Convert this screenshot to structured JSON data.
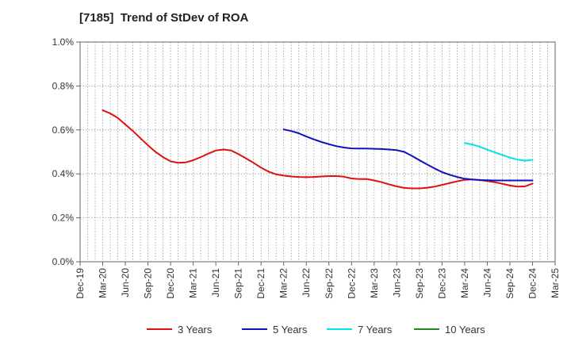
{
  "chart_data": {
    "type": "line",
    "title": "[7185]  Trend of StDev of ROA",
    "xlabel": "",
    "ylabel": "",
    "ylim": [
      0,
      1.0
    ],
    "y_ticks": [
      "0.0%",
      "0.2%",
      "0.4%",
      "0.6%",
      "0.8%",
      "1.0%"
    ],
    "y_tick_values": [
      0,
      0.2,
      0.4,
      0.6,
      0.8,
      1.0
    ],
    "x_ticks": [
      "Dec-19",
      "Mar-20",
      "Jun-20",
      "Sep-20",
      "Dec-20",
      "Mar-21",
      "Jun-21",
      "Sep-21",
      "Dec-21",
      "Mar-22",
      "Jun-22",
      "Sep-22",
      "Dec-22",
      "Mar-23",
      "Jun-23",
      "Sep-23",
      "Dec-23",
      "Mar-24",
      "Jun-24",
      "Sep-24",
      "Dec-24",
      "Mar-25"
    ],
    "grid": true,
    "legend_position": "bottom",
    "series": [
      {
        "name": "3 Years",
        "color": "#dd1111",
        "x": [
          "Mar-20",
          "Apr-20",
          "May-20",
          "Jun-20",
          "Jul-20",
          "Aug-20",
          "Sep-20",
          "Oct-20",
          "Nov-20",
          "Dec-20",
          "Jan-21",
          "Feb-21",
          "Mar-21",
          "Apr-21",
          "May-21",
          "Jun-21",
          "Jul-21",
          "Aug-21",
          "Sep-21",
          "Oct-21",
          "Nov-21",
          "Dec-21",
          "Jan-22",
          "Feb-22",
          "Mar-22",
          "Apr-22",
          "May-22",
          "Jun-22",
          "Jul-22",
          "Aug-22",
          "Sep-22",
          "Oct-22",
          "Nov-22",
          "Dec-22",
          "Jan-23",
          "Feb-23",
          "Mar-23",
          "Apr-23",
          "May-23",
          "Jun-23",
          "Jul-23",
          "Aug-23",
          "Sep-23",
          "Oct-23",
          "Nov-23",
          "Dec-23",
          "Jan-24",
          "Feb-24",
          "Mar-24",
          "Apr-24",
          "May-24",
          "Jun-24",
          "Jul-24",
          "Aug-24",
          "Sep-24",
          "Oct-24",
          "Nov-24",
          "Dec-24"
        ],
        "values": [
          0.69,
          0.675,
          0.655,
          0.625,
          0.595,
          0.562,
          0.53,
          0.5,
          0.476,
          0.457,
          0.45,
          0.452,
          0.462,
          0.476,
          0.492,
          0.506,
          0.511,
          0.507,
          0.49,
          0.47,
          0.45,
          0.428,
          0.41,
          0.398,
          0.392,
          0.388,
          0.386,
          0.385,
          0.386,
          0.388,
          0.39,
          0.39,
          0.387,
          0.379,
          0.376,
          0.377,
          0.37,
          0.362,
          0.352,
          0.343,
          0.336,
          0.334,
          0.334,
          0.337,
          0.342,
          0.35,
          0.358,
          0.366,
          0.373,
          0.375,
          0.372,
          0.367,
          0.362,
          0.355,
          0.347,
          0.342,
          0.343,
          0.356
        ]
      },
      {
        "name": "5 Years",
        "color": "#1111bb",
        "x": [
          "Mar-22",
          "Apr-22",
          "May-22",
          "Jun-22",
          "Jul-22",
          "Aug-22",
          "Sep-22",
          "Oct-22",
          "Nov-22",
          "Dec-22",
          "Jan-23",
          "Feb-23",
          "Mar-23",
          "Apr-23",
          "May-23",
          "Jun-23",
          "Jul-23",
          "Aug-23",
          "Sep-23",
          "Oct-23",
          "Nov-23",
          "Dec-23",
          "Jan-24",
          "Feb-24",
          "Mar-24",
          "Apr-24",
          "May-24",
          "Jun-24",
          "Jul-24",
          "Aug-24",
          "Sep-24",
          "Oct-24",
          "Nov-24",
          "Dec-24"
        ],
        "values": [
          0.602,
          0.595,
          0.585,
          0.57,
          0.557,
          0.545,
          0.535,
          0.526,
          0.52,
          0.516,
          0.515,
          0.515,
          0.514,
          0.513,
          0.511,
          0.508,
          0.5,
          0.482,
          0.462,
          0.443,
          0.425,
          0.408,
          0.396,
          0.386,
          0.378,
          0.374,
          0.372,
          0.371,
          0.37,
          0.37,
          0.37,
          0.37,
          0.37,
          0.37
        ]
      },
      {
        "name": "7 Years",
        "color": "#00e5e5",
        "x": [
          "Mar-24",
          "Apr-24",
          "May-24",
          "Jun-24",
          "Jul-24",
          "Aug-24",
          "Sep-24",
          "Oct-24",
          "Nov-24",
          "Dec-24"
        ],
        "values": [
          0.54,
          0.534,
          0.524,
          0.51,
          0.498,
          0.486,
          0.474,
          0.465,
          0.46,
          0.464
        ]
      },
      {
        "name": "10 Years",
        "color": "#228822",
        "x": [],
        "values": []
      }
    ]
  }
}
